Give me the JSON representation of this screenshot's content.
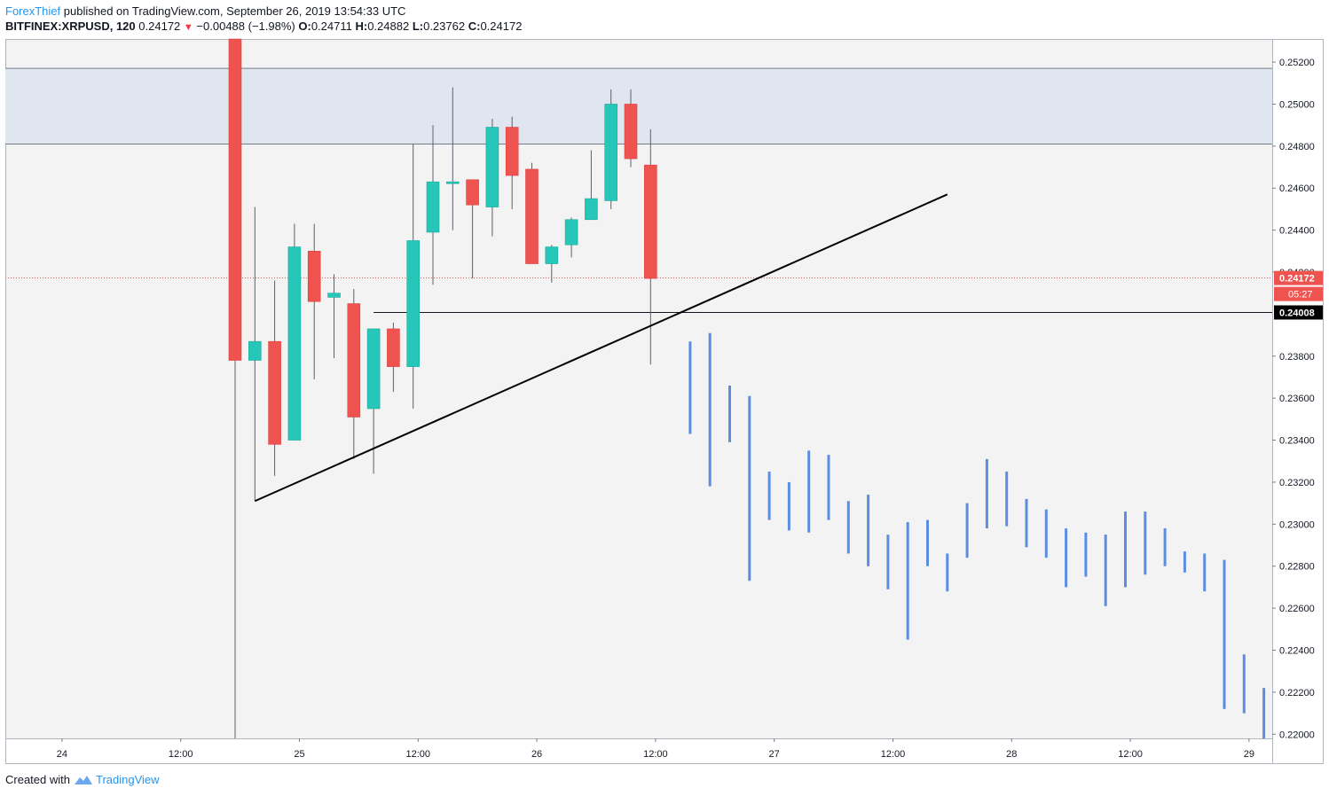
{
  "header": {
    "author": "ForexThief",
    "published": "published on TradingView.com, September 26, 2019 13:54:33 UTC",
    "symbol": "BITFINEX:XRPUSD, 120",
    "last": "0.24172",
    "arrow": "▼",
    "change": "−0.00488 (−1.98%)",
    "o_label": "O:",
    "o_value": "0.24711",
    "h_label": "H:",
    "h_value": "0.24882",
    "l_label": "L:",
    "l_value": "0.23762",
    "c_label": "C:",
    "c_value": "0.24172"
  },
  "footer": {
    "created_with": "Created with",
    "brand": "TradingView",
    "logo_icon": "tradingview-logo-icon"
  },
  "colors": {
    "up": "#26c6b8",
    "down": "#ef5350",
    "projection": "#5b8ee0",
    "zone": "#dfe6ef",
    "background": "#f3f3f3",
    "price_line": "#ef5350"
  },
  "chart_data": {
    "type": "candlestick",
    "ylim": [
      0.2198,
      0.2531
    ],
    "y_ticks": [
      "0.25200",
      "0.25000",
      "0.24800",
      "0.24600",
      "0.24400",
      "0.24200",
      "0.23800",
      "0.23600",
      "0.23400",
      "0.23200",
      "0.23000",
      "0.22800",
      "0.22600",
      "0.22400",
      "0.22200",
      "0.22000"
    ],
    "y_tick_values": [
      0.252,
      0.25,
      0.248,
      0.246,
      0.244,
      0.242,
      0.238,
      0.236,
      0.234,
      0.232,
      0.23,
      0.228,
      0.226,
      0.224,
      0.222,
      0.22
    ],
    "x_ticks": [
      {
        "label": "24",
        "bar": -8.75
      },
      {
        "label": "12:00",
        "bar": -2.75
      },
      {
        "label": "25",
        "bar": 3.25
      },
      {
        "label": "12:00",
        "bar": 9.25
      },
      {
        "label": "26",
        "bar": 15.25
      },
      {
        "label": "12:00",
        "bar": 21.25
      },
      {
        "label": "27",
        "bar": 27.25
      },
      {
        "label": "12:00",
        "bar": 33.25
      },
      {
        "label": "28",
        "bar": 39.25
      },
      {
        "label": "12:00",
        "bar": 45.25
      },
      {
        "label": "29",
        "bar": 51.25
      }
    ],
    "candles": [
      {
        "o": 0.2531,
        "h": 0.2531,
        "l": 0.2198,
        "c": 0.2378
      },
      {
        "o": 0.2378,
        "h": 0.2451,
        "l": 0.2311,
        "c": 0.2387
      },
      {
        "o": 0.2387,
        "h": 0.2416,
        "l": 0.2323,
        "c": 0.2338
      },
      {
        "o": 0.234,
        "h": 0.2443,
        "l": 0.234,
        "c": 0.2432
      },
      {
        "o": 0.243,
        "h": 0.2443,
        "l": 0.2369,
        "c": 0.2406
      },
      {
        "o": 0.2408,
        "h": 0.2419,
        "l": 0.2379,
        "c": 0.241
      },
      {
        "o": 0.2405,
        "h": 0.2412,
        "l": 0.2331,
        "c": 0.2351
      },
      {
        "o": 0.2355,
        "h": 0.2392,
        "l": 0.2324,
        "c": 0.2393
      },
      {
        "o": 0.2393,
        "h": 0.2396,
        "l": 0.2363,
        "c": 0.2375
      },
      {
        "o": 0.2375,
        "h": 0.2481,
        "l": 0.2355,
        "c": 0.2435
      },
      {
        "o": 0.2439,
        "h": 0.249,
        "l": 0.2414,
        "c": 0.2463
      },
      {
        "o": 0.2463,
        "h": 0.2508,
        "l": 0.244,
        "c": 0.2463
      },
      {
        "o": 0.2464,
        "h": 0.2464,
        "l": 0.2417,
        "c": 0.2452
      },
      {
        "o": 0.2451,
        "h": 0.2493,
        "l": 0.2437,
        "c": 0.2489
      },
      {
        "o": 0.2489,
        "h": 0.2494,
        "l": 0.245,
        "c": 0.2466
      },
      {
        "o": 0.2469,
        "h": 0.2472,
        "l": 0.2424,
        "c": 0.2424
      },
      {
        "o": 0.2424,
        "h": 0.2433,
        "l": 0.2415,
        "c": 0.2432
      },
      {
        "o": 0.2433,
        "h": 0.2446,
        "l": 0.2427,
        "c": 0.2445
      },
      {
        "o": 0.2445,
        "h": 0.2478,
        "l": 0.2445,
        "c": 0.2455
      },
      {
        "o": 0.2454,
        "h": 0.2507,
        "l": 0.245,
        "c": 0.25
      },
      {
        "o": 0.25,
        "h": 0.2507,
        "l": 0.247,
        "c": 0.2474
      },
      {
        "o": 0.2471,
        "h": 0.2488,
        "l": 0.2376,
        "c": 0.2417
      }
    ],
    "projection_bars": [
      {
        "h": 0.2387,
        "l": 0.2343
      },
      {
        "h": 0.2391,
        "l": 0.2318
      },
      {
        "h": 0.2366,
        "l": 0.2339
      },
      {
        "h": 0.2361,
        "l": 0.2273
      },
      {
        "h": 0.2325,
        "l": 0.2302
      },
      {
        "h": 0.232,
        "l": 0.2297
      },
      {
        "h": 0.2335,
        "l": 0.2296
      },
      {
        "h": 0.2333,
        "l": 0.2302
      },
      {
        "h": 0.2311,
        "l": 0.2286
      },
      {
        "h": 0.2314,
        "l": 0.228
      },
      {
        "h": 0.2295,
        "l": 0.2269
      },
      {
        "h": 0.2301,
        "l": 0.2245
      },
      {
        "h": 0.2302,
        "l": 0.228
      },
      {
        "h": 0.2286,
        "l": 0.2268
      },
      {
        "h": 0.231,
        "l": 0.2284
      },
      {
        "h": 0.2331,
        "l": 0.2298
      },
      {
        "h": 0.2325,
        "l": 0.2299
      },
      {
        "h": 0.2312,
        "l": 0.2289
      },
      {
        "h": 0.2307,
        "l": 0.2284
      },
      {
        "h": 0.2298,
        "l": 0.227
      },
      {
        "h": 0.2296,
        "l": 0.2275
      },
      {
        "h": 0.2295,
        "l": 0.2261
      },
      {
        "h": 0.2306,
        "l": 0.227
      },
      {
        "h": 0.2306,
        "l": 0.2276
      },
      {
        "h": 0.2298,
        "l": 0.228
      },
      {
        "h": 0.2287,
        "l": 0.2277
      },
      {
        "h": 0.2286,
        "l": 0.2268
      },
      {
        "h": 0.2283,
        "l": 0.2212
      },
      {
        "h": 0.2238,
        "l": 0.221
      },
      {
        "h": 0.2222,
        "l": 0.2198
      },
      {
        "h": 0.2231,
        "l": 0.2211
      },
      {
        "h": 0.2231,
        "l": 0.2211
      },
      {
        "h": 0.2215,
        "l": 0.2198
      },
      {
        "h": 0.2227,
        "l": 0.2209
      },
      {
        "h": 0.222,
        "l": 0.2207
      },
      {
        "h": 0.2215,
        "l": 0.2198
      },
      {
        "h": 0.2204,
        "l": 0.2198
      },
      {
        "h": 0.2215,
        "l": 0.2198
      },
      {
        "h": 0.2208,
        "l": 0.2198
      }
    ],
    "resistance_zone": [
      0.2481,
      0.2517
    ],
    "support_level": {
      "value": 0.24008,
      "label": "0.24008",
      "from_bar": 7
    },
    "trendline": {
      "start": {
        "bar": 1,
        "price": 0.2311
      },
      "end": {
        "bar": 36,
        "price": 0.2457
      }
    },
    "last_price": {
      "value": 0.24172,
      "label": "0.24172",
      "countdown": "05:27"
    }
  }
}
